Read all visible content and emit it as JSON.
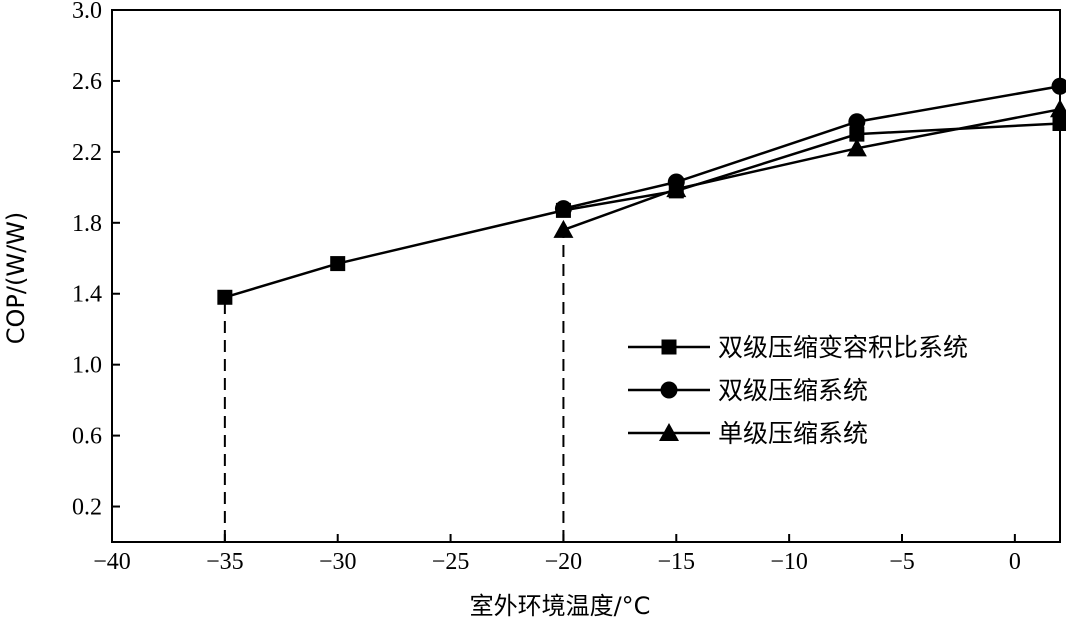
{
  "chart_data": {
    "type": "line",
    "xlabel": "室外环境温度/°C",
    "ylabel": "COP/(W/W)",
    "xlim": [
      -40,
      2
    ],
    "ylim": [
      0,
      3.0
    ],
    "x_ticks": [
      -40,
      -35,
      -30,
      -25,
      -20,
      -15,
      -10,
      -5,
      0
    ],
    "x_tick_labels": [
      "−40",
      "−35",
      "−30",
      "−25",
      "−20",
      "−15",
      "−10",
      "−5",
      "0"
    ],
    "y_ticks": [
      0.2,
      0.6,
      1.0,
      1.4,
      1.8,
      2.2,
      2.6,
      3.0
    ],
    "y_tick_labels": [
      "0.2",
      "0.6",
      "1.0",
      "1.4",
      "1.8",
      "2.2",
      "2.6",
      "3.0"
    ],
    "grid": false,
    "legend_position": "right",
    "series": [
      {
        "name": "双级压缩变容积比系统",
        "marker": "square",
        "x": [
          -35,
          -30,
          -20,
          -15,
          -7,
          2
        ],
        "y": [
          1.38,
          1.57,
          1.87,
          1.98,
          2.3,
          2.36
        ]
      },
      {
        "name": "双级压缩系统",
        "marker": "circle",
        "x": [
          -20,
          -15,
          -7,
          2
        ],
        "y": [
          1.88,
          2.03,
          2.37,
          2.57
        ]
      },
      {
        "name": "单级压缩系统",
        "marker": "triangle",
        "x": [
          -20,
          -15,
          -7,
          2
        ],
        "y": [
          1.76,
          1.99,
          2.22,
          2.44
        ]
      }
    ],
    "reference_lines": [
      {
        "x": -35,
        "y_from": 0,
        "y_to": 1.38,
        "style": "dashed"
      },
      {
        "x": -20,
        "y_from": 0,
        "y_to": 1.76,
        "style": "dashed"
      }
    ]
  }
}
